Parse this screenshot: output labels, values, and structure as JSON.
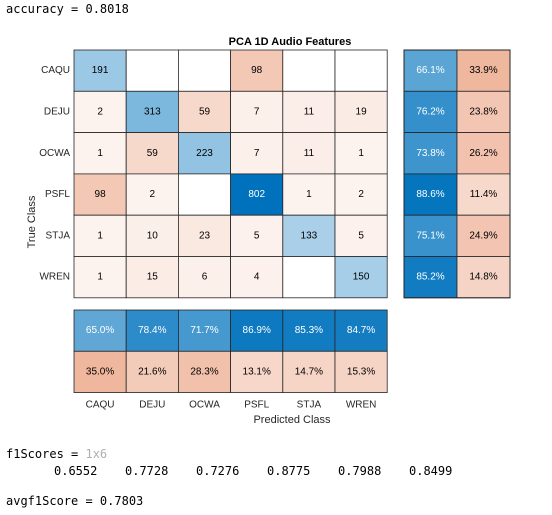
{
  "console": {
    "accuracy_label": "accuracy = ",
    "accuracy_value": "0.8018",
    "f1_label": "f1Scores = ",
    "f1_size": "1x6",
    "f1_values": [
      "0.6552",
      "0.7728",
      "0.7276",
      "0.8775",
      "0.7988",
      "0.8499"
    ],
    "avg_label": "avgf1Score = ",
    "avg_value": "0.7803"
  },
  "chart_data": {
    "type": "heatmap",
    "title": "PCA 1D Audio Features",
    "xlabel": "Predicted Class",
    "ylabel": "True Class",
    "classes": [
      "CAQU",
      "DEJU",
      "OCWA",
      "PSFL",
      "STJA",
      "WREN"
    ],
    "matrix": [
      [
        191,
        0,
        0,
        98,
        0,
        0
      ],
      [
        2,
        313,
        59,
        7,
        11,
        19
      ],
      [
        1,
        59,
        223,
        7,
        11,
        1
      ],
      [
        98,
        2,
        0,
        802,
        1,
        2
      ],
      [
        1,
        10,
        23,
        5,
        133,
        5
      ],
      [
        1,
        15,
        6,
        4,
        0,
        150
      ]
    ],
    "row_summary": {
      "correct_pct": [
        66.1,
        76.2,
        73.8,
        88.6,
        75.1,
        85.2
      ],
      "incorrect_pct": [
        33.9,
        23.8,
        26.2,
        11.4,
        24.9,
        14.8
      ]
    },
    "column_summary": {
      "correct_pct": [
        65.0,
        78.4,
        71.7,
        86.9,
        85.3,
        84.7
      ],
      "incorrect_pct": [
        35.0,
        21.6,
        28.3,
        13.1,
        14.7,
        15.3
      ]
    },
    "colors": {
      "correct": "#0072bd",
      "incorrect": "#d95319"
    }
  }
}
